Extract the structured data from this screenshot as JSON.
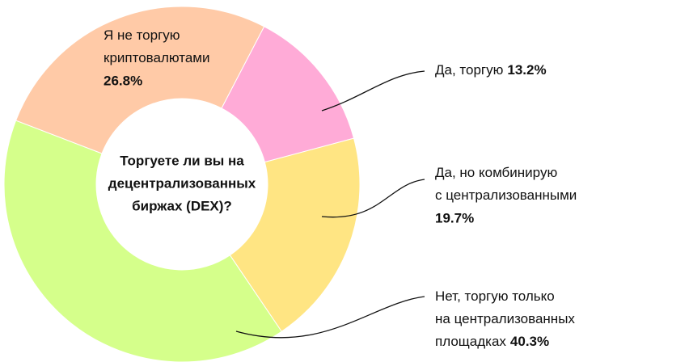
{
  "chart_data": {
    "type": "donut",
    "title": [
      "Торгуете ли вы на",
      "децентрализованных",
      "биржах (DEX)?"
    ],
    "categories": [
      [
        "Да, торгую"
      ],
      [
        "Да, но комбинирую",
        "с централизованными"
      ],
      [
        "Нет, торгую только",
        "на централизованных",
        "площадках"
      ],
      [
        "Я не торгую",
        "криптовалютами"
      ]
    ],
    "values": [
      13.2,
      19.7,
      40.3,
      26.8
    ],
    "value_labels": [
      "13.2%",
      "19.7%",
      "40.3%",
      "26.8%"
    ],
    "colors": [
      "#ffabd7",
      "#ffe583",
      "#d5ff8b",
      "#ffcaa7"
    ]
  }
}
